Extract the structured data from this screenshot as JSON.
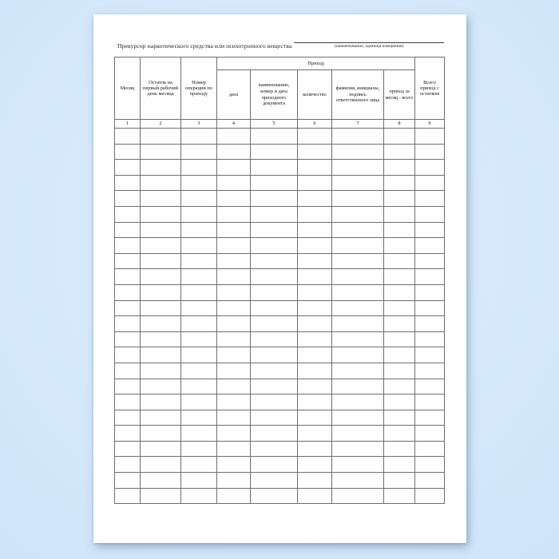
{
  "document": {
    "title": "Прекурсор наркотического средства или психотропного вещества",
    "blank_caption": "(наименование, единица измерения)"
  },
  "table": {
    "group_header": "Приход",
    "columns": [
      {
        "number": "1",
        "label": "Месяц"
      },
      {
        "number": "2",
        "label": "Остаток на первый рабочий день месяца"
      },
      {
        "number": "3",
        "label": "Номер операции по приходу"
      },
      {
        "number": "4",
        "label": "дата"
      },
      {
        "number": "5",
        "label": "наименование, номер и дата приходного документа"
      },
      {
        "number": "6",
        "label": "количество"
      },
      {
        "number": "7",
        "label": "фамилия, инициалы, подпись ответственного лица"
      },
      {
        "number": "8",
        "label": "приход за месяц - всего"
      },
      {
        "number": "9",
        "label": "Всего приход с остатком"
      }
    ],
    "empty_row_count": 24
  },
  "colors": {
    "page_background": "#fefefe",
    "desk_background": "#d5e9fb",
    "table_border": "#6f6f6f",
    "text": "#1c1c1c"
  }
}
